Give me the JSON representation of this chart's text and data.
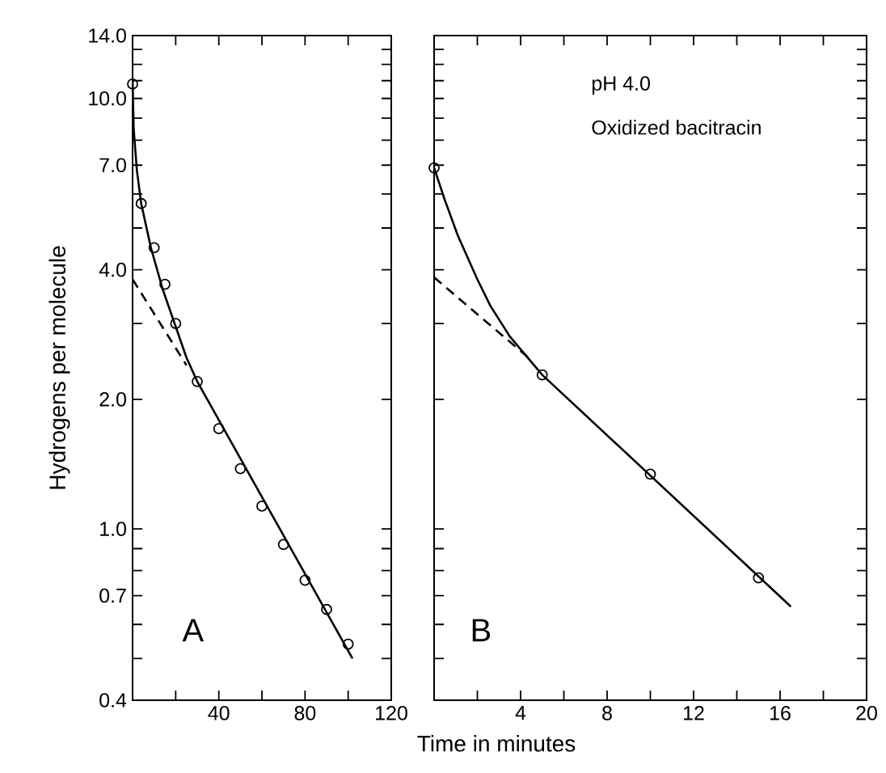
{
  "chart_data": [
    {
      "type": "scatter",
      "ylabel": "Hydrogens per molecule",
      "log": "y",
      "grid": false,
      "xlim": [
        0,
        120
      ],
      "ylim": [
        0.4,
        14
      ],
      "xticks": [
        {
          "value": 20,
          "label": null
        },
        40,
        {
          "value": 60,
          "label": null
        },
        80,
        {
          "value": 100,
          "label": null
        },
        120
      ],
      "yticks": [
        {
          "value": 0.4,
          "label": "0.4"
        },
        {
          "value": 0.5,
          "label": null
        },
        {
          "value": 0.6,
          "label": null
        },
        0.7,
        {
          "value": 0.8,
          "label": null
        },
        {
          "value": 0.9,
          "label": null
        },
        {
          "value": 1,
          "label": "1.0"
        },
        {
          "value": 2,
          "label": "2.0"
        },
        {
          "value": 3,
          "label": null
        },
        {
          "value": 4,
          "label": "4.0"
        },
        {
          "value": 5,
          "label": null
        },
        {
          "value": 6,
          "label": null
        },
        {
          "value": 7,
          "label": "7.0"
        },
        {
          "value": 8,
          "label": null
        },
        {
          "value": 9,
          "label": null
        },
        {
          "value": 10,
          "label": "10.0"
        },
        {
          "value": 11,
          "label": null
        },
        {
          "value": 12,
          "label": null
        },
        {
          "value": 13,
          "label": null
        },
        {
          "value": 14,
          "label": "14.0"
        }
      ],
      "annotations": [
        "A"
      ],
      "series": [
        {
          "color": "#000000",
          "marker": "circle",
          "x": [
            0,
            4,
            10,
            15,
            20,
            30,
            40,
            50,
            60,
            70,
            80,
            90,
            100
          ],
          "values": [
            10.8,
            5.7,
            4.5,
            3.7,
            3.0,
            2.2,
            1.71,
            1.38,
            1.13,
            0.92,
            0.76,
            0.65,
            0.54
          ]
        },
        {
          "type": "line",
          "color": "#000000",
          "marker": "none",
          "line_style": "solid",
          "x": [
            0,
            0.5,
            2,
            4,
            8.5,
            14,
            20,
            25,
            30,
            102
          ],
          "values": [
            11,
            8.5,
            6.8,
            5.7,
            4.5,
            3.6,
            2.95,
            2.5,
            2.2,
            0.5
          ]
        },
        {
          "type": "line",
          "color": "#000000",
          "marker": "none",
          "line_style": "dashed",
          "x": [
            0,
            25
          ],
          "values": [
            3.8,
            2.4
          ]
        }
      ]
    },
    {
      "type": "scatter",
      "xlabel": "Time in minutes",
      "log": "y",
      "grid": false,
      "tick_labels": "x",
      "xlim": [
        0,
        20
      ],
      "ylim": [
        0.4,
        14
      ],
      "xticks": [
        {
          "value": 2,
          "label": null
        },
        4,
        {
          "value": 6,
          "label": null
        },
        8,
        {
          "value": 10,
          "label": null
        },
        12,
        {
          "value": 14,
          "label": null
        },
        16,
        {
          "value": 18,
          "label": null
        },
        20
      ],
      "yticks": [
        0.4,
        0.5,
        0.6,
        0.7,
        0.8,
        0.9,
        1,
        2,
        3,
        4,
        5,
        6,
        7,
        8,
        9,
        10,
        11,
        12,
        13,
        14
      ],
      "annotations": [
        "pH 4.0",
        "Oxidized bacitracin",
        "B"
      ],
      "series": [
        {
          "color": "#000000",
          "marker": "circle",
          "x": [
            0,
            5,
            10,
            15
          ],
          "values": [
            6.9,
            2.28,
            1.34,
            0.77
          ]
        },
        {
          "type": "line",
          "color": "#000000",
          "marker": "none",
          "line_style": "solid",
          "x": [
            0,
            0.5,
            1.1,
            2,
            2.6,
            3.5,
            5,
            16.5
          ],
          "values": [
            6.9,
            5.8,
            4.8,
            3.8,
            3.3,
            2.8,
            2.28,
            0.66
          ]
        },
        {
          "type": "line",
          "color": "#000000",
          "marker": "none",
          "line_style": "dashed",
          "x": [
            0,
            4.4
          ],
          "values": [
            3.84,
            2.49
          ]
        }
      ]
    }
  ]
}
